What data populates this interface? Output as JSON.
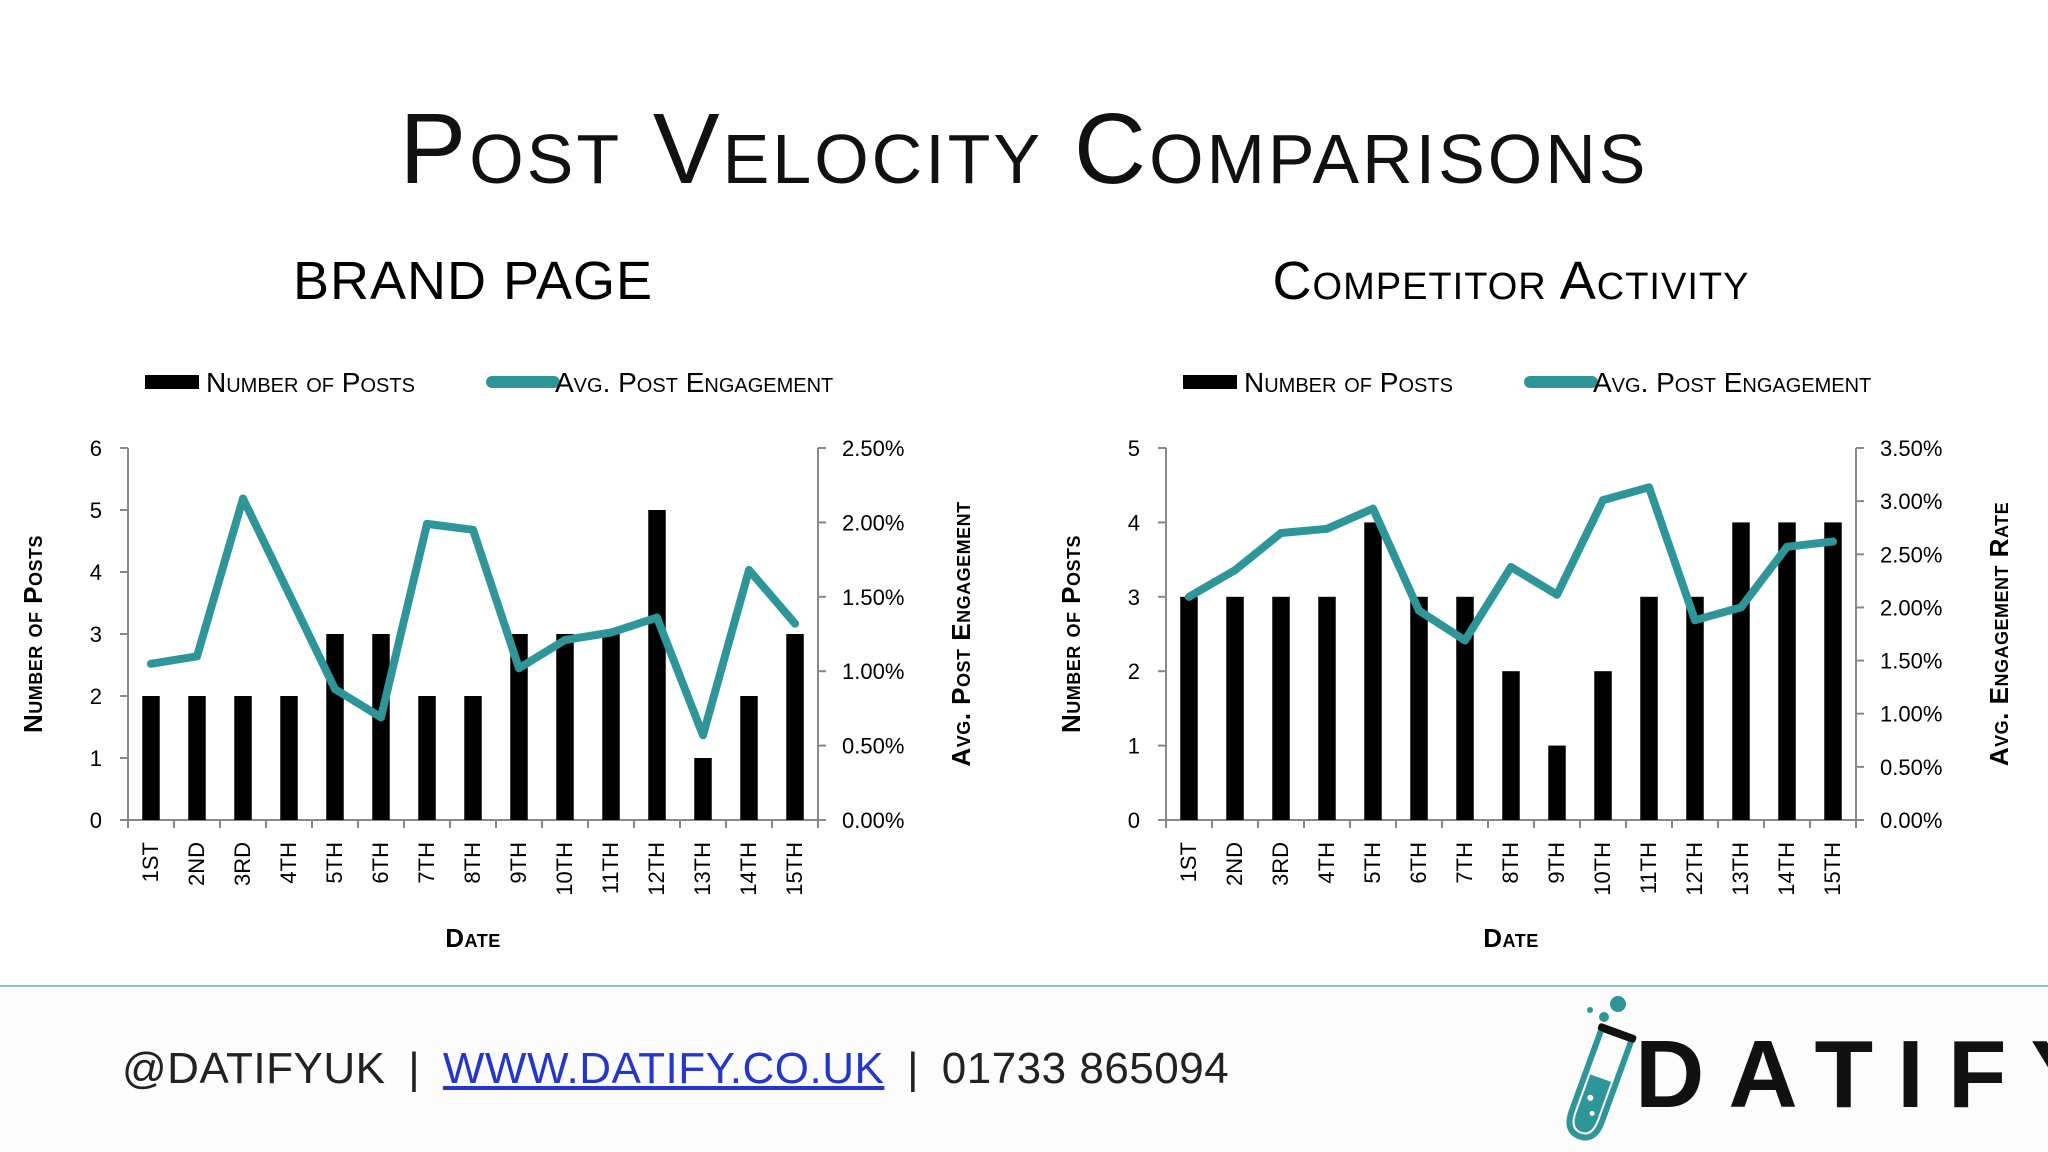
{
  "slide": {
    "title": "Post Velocity Comparisons"
  },
  "colors": {
    "bars": "#000000",
    "line": "#2e9698",
    "footer_line": "#8fbfc9",
    "link": "#2437c8"
  },
  "chart_data": [
    {
      "type": "bar",
      "title": "BRAND PAGE",
      "legend": {
        "bars": "Number of Posts",
        "line": "Avg. Post Engagement",
        "position": "top"
      },
      "xlabel": "Date",
      "ylabel": "Number of Posts",
      "y2label": "Avg. Post Engagement",
      "categories": [
        "1ST",
        "2ND",
        "3RD",
        "4TH",
        "5TH",
        "6TH",
        "7TH",
        "8TH",
        "9TH",
        "10TH",
        "11TH",
        "12TH",
        "13TH",
        "14TH",
        "15TH"
      ],
      "ylim": [
        0,
        6
      ],
      "yticks": [
        "0",
        "1",
        "2",
        "3",
        "4",
        "5",
        "6"
      ],
      "y2lim": [
        0,
        2.5
      ],
      "y2ticks": [
        "0.00%",
        "0.50%",
        "1.00%",
        "1.50%",
        "2.00%",
        "2.50%"
      ],
      "series": [
        {
          "name": "Number of Posts",
          "type": "bar",
          "axis": "left",
          "values": [
            2,
            2,
            2,
            2,
            3,
            3,
            2,
            2,
            3,
            3,
            3,
            5,
            1,
            2,
            3
          ]
        },
        {
          "name": "Avg. Post Engagement",
          "type": "line",
          "axis": "right",
          "values": [
            1.05,
            1.1,
            2.16,
            1.52,
            0.88,
            0.69,
            1.99,
            1.95,
            1.02,
            1.21,
            1.26,
            1.36,
            0.57,
            1.68,
            1.32
          ]
        }
      ],
      "grid": false
    },
    {
      "type": "bar",
      "title": "Competitor Activity",
      "legend": {
        "bars": "Number of Posts",
        "line": "Avg. Post Engagement",
        "position": "top"
      },
      "xlabel": "Date",
      "ylabel": "Number of Posts",
      "y2label": "Avg. Engagement Rate",
      "categories": [
        "1ST",
        "2ND",
        "3RD",
        "4TH",
        "5TH",
        "6TH",
        "7TH",
        "8TH",
        "9TH",
        "10TH",
        "11TH",
        "12TH",
        "13TH",
        "14TH",
        "15TH"
      ],
      "ylim": [
        0,
        5
      ],
      "yticks": [
        "0",
        "1",
        "2",
        "3",
        "4",
        "5"
      ],
      "y2lim": [
        0,
        3.5
      ],
      "y2ticks": [
        "0.00%",
        "0.50%",
        "1.00%",
        "1.50%",
        "2.00%",
        "2.50%",
        "3.00%",
        "3.50%"
      ],
      "series": [
        {
          "name": "Number of Posts",
          "type": "bar",
          "axis": "left",
          "values": [
            3,
            3,
            3,
            3,
            4,
            3,
            3,
            2,
            1,
            2,
            3,
            3,
            4,
            4,
            4
          ]
        },
        {
          "name": "Avg. Post Engagement",
          "type": "line",
          "axis": "right",
          "values": [
            2.1,
            2.35,
            2.7,
            2.74,
            2.93,
            1.97,
            1.69,
            2.38,
            2.12,
            3.01,
            3.13,
            1.88,
            2.0,
            2.57,
            2.62
          ]
        }
      ],
      "grid": false
    }
  ],
  "footer": {
    "handle": "@DATIFYUK",
    "separator": "|",
    "website": "WWW.DATIFY.CO.UK",
    "phone": "01733 865094",
    "logo_text": "DATIFY",
    "logo_icon": "test-tube-icon"
  }
}
